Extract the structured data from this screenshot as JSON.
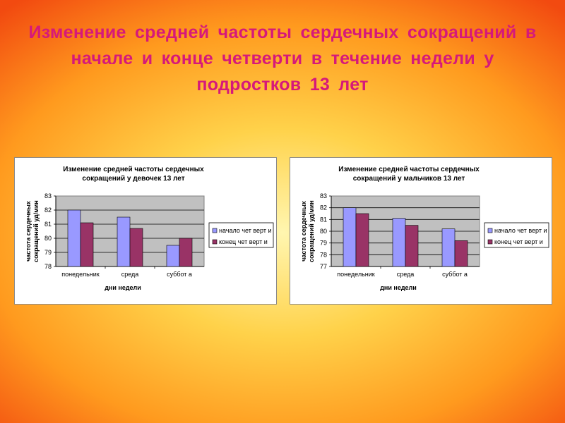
{
  "slide": {
    "title": "Изменение средней частоты сердечных сокращений в начале и конце четверти в течение недели у подростков 13 лет"
  },
  "colors": {
    "series_start": "#9999ff",
    "series_end": "#993366",
    "plot_bg": "#c0c0c0",
    "title_color": "#d6197a"
  },
  "chart_data": [
    {
      "type": "bar",
      "title_lines": [
        "Изменение средней частоты сердечных",
        "сокращений у девочек 13 лет"
      ],
      "xlabel": "дни недели",
      "ylabel_lines": [
        "частота сердечных",
        "сокращений уд/мин"
      ],
      "categories": [
        "понедельник",
        "среда",
        "суббот а"
      ],
      "series": [
        {
          "name": "начало чет верт и",
          "values": [
            82.0,
            81.5,
            79.5
          ]
        },
        {
          "name": "конец чет верт и",
          "values": [
            81.1,
            80.7,
            80.0
          ]
        }
      ],
      "ylim": [
        78,
        83
      ],
      "yticks": [
        78,
        79,
        80,
        81,
        82,
        83
      ],
      "grid": true,
      "legend": "right"
    },
    {
      "type": "bar",
      "title_lines": [
        "Изменение средней частоты сердечных",
        "сокращений у мальчиков 13 лет"
      ],
      "xlabel": "дни недели",
      "ylabel_lines": [
        "частота сердечных",
        "сокращений уд/мин"
      ],
      "categories": [
        "понедельник",
        "среда",
        "суббот а"
      ],
      "series": [
        {
          "name": "начало чет верт и",
          "values": [
            82.0,
            81.1,
            80.2
          ]
        },
        {
          "name": "конец чет верт и",
          "values": [
            81.5,
            80.5,
            79.2
          ]
        }
      ],
      "ylim": [
        77,
        83
      ],
      "yticks": [
        77,
        78,
        79,
        80,
        81,
        82,
        83
      ],
      "grid": true,
      "legend": "right"
    }
  ]
}
